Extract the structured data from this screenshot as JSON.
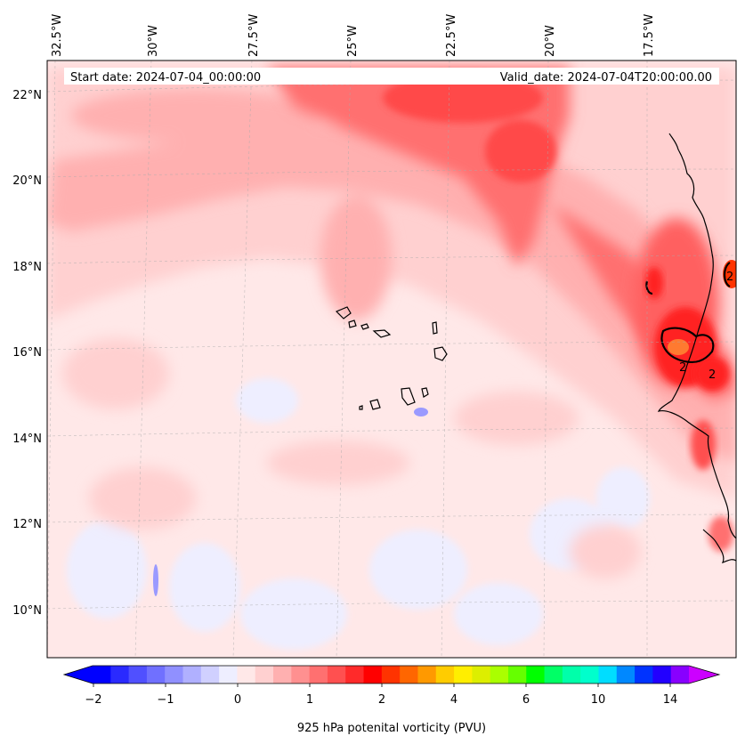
{
  "header": {
    "start_date": "Start date: 2024-07-04_00:00:00",
    "valid_date": "Valid_date: 2024-07-04T20:00:00.00"
  },
  "longitude_labels": [
    "32.5°W",
    "30°W",
    "27.5°W",
    "25°W",
    "22.5°W",
    "20°W",
    "17.5°W"
  ],
  "latitude_labels": [
    "22°N",
    "20°N",
    "18°N",
    "16°N",
    "14°N",
    "12°N",
    "10°N"
  ],
  "contour_label": "2",
  "colorbar": {
    "title": "925 hPa potenital vorticity (PVU)",
    "tick_labels": [
      "−2",
      "−1",
      "0",
      "1",
      "2",
      "4",
      "6",
      "10",
      "14"
    ],
    "colors": [
      "#0000ff",
      "#2a2aff",
      "#5050ff",
      "#7070ff",
      "#9090ff",
      "#b0b0ff",
      "#d0d0ff",
      "#eeeeff",
      "#ffe8e8",
      "#ffd0d0",
      "#ffb0b0",
      "#ff9090",
      "#ff7070",
      "#ff5050",
      "#ff2a2a",
      "#ff0000",
      "#ff3300",
      "#ff6600",
      "#ff9900",
      "#ffcc00",
      "#ffee00",
      "#ddee00",
      "#aaff00",
      "#66ff00",
      "#00ff00",
      "#00ff66",
      "#00ffaa",
      "#00ffcc",
      "#00ddff",
      "#0088ff",
      "#0033ff",
      "#2200ff",
      "#8800ff"
    ],
    "under_color": "#0000ff",
    "over_color": "#cc00ff"
  },
  "colors": {
    "ocean_base": "#ffe8e8",
    "light_pink": "#ffd0d0",
    "medium_pink": "#ffb0b0",
    "red": "#ff6060",
    "strong_red": "#ff2020",
    "light_blue": "#eeeeff",
    "coast": "#000000"
  }
}
